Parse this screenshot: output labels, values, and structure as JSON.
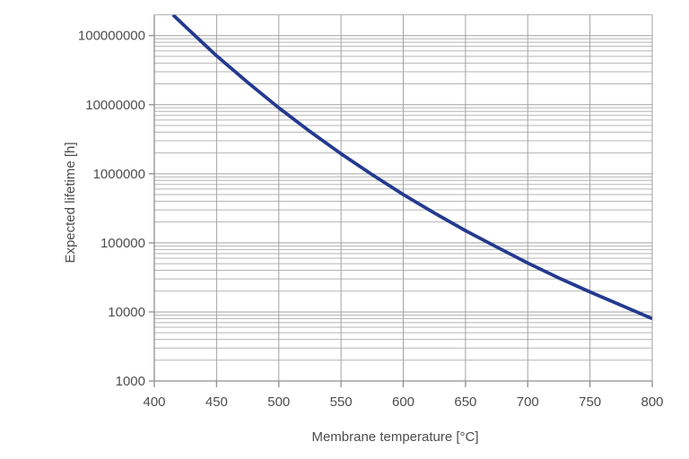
{
  "window": {
    "background": "#ffffff"
  },
  "chart_data": {
    "type": "line",
    "title": "",
    "xlabel": "Membrane temperature [°C]",
    "ylabel": "Expected lifetime [h]",
    "legend": "none",
    "x_axis": {
      "min": 400,
      "max": 800,
      "tick_values": [
        400,
        450,
        500,
        550,
        600,
        650,
        700,
        750,
        800
      ],
      "tick_labels": [
        "400",
        "450",
        "500",
        "550",
        "600",
        "650",
        "700",
        "750",
        "800"
      ]
    },
    "y_axis": {
      "scale": "log",
      "min": 1000,
      "max": 200000000,
      "tick_values": [
        1000,
        10000,
        100000,
        1000000,
        10000000,
        100000000
      ],
      "tick_labels": [
        "1000",
        "10000",
        "100000",
        "1000000",
        "10000000",
        "100000000"
      ]
    },
    "grid": {
      "major": true,
      "minor": true,
      "color_major": "#a2a2a2",
      "color_minor": "#b5b5b5"
    },
    "axis_color": "#8f8f8f",
    "text_color": "#4d4d4d",
    "series": [
      {
        "name": "Expected lifetime",
        "color": "#233a8f",
        "points": [
          [
            415,
            200000000
          ],
          [
            425,
            135000000
          ],
          [
            450,
            51000000
          ],
          [
            475,
            21000000
          ],
          [
            500,
            9000000
          ],
          [
            525,
            4100000
          ],
          [
            550,
            1950000
          ],
          [
            575,
            970000
          ],
          [
            600,
            500000
          ],
          [
            625,
            270000
          ],
          [
            650,
            150000
          ],
          [
            675,
            87000
          ],
          [
            700,
            51000
          ],
          [
            725,
            31000
          ],
          [
            750,
            19500
          ],
          [
            775,
            12500
          ],
          [
            800,
            8000
          ]
        ]
      }
    ]
  }
}
